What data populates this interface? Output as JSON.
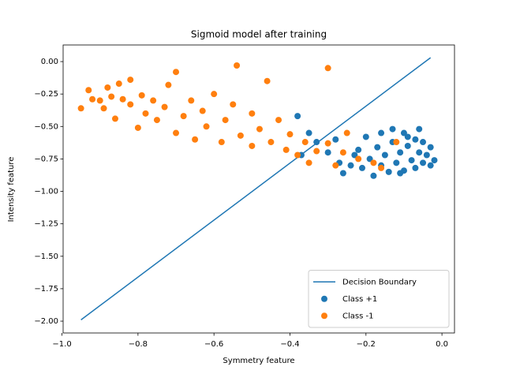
{
  "chart_data": {
    "type": "scatter",
    "title": "Sigmoid model after training",
    "xlabel": "Symmetry feature",
    "ylabel": "Intensity feature",
    "xlim": [
      -0.997,
      0.033
    ],
    "ylim": [
      -2.091,
      0.128
    ],
    "xticks": [
      {
        "value": -1.0,
        "label": "−1.0"
      },
      {
        "value": -0.8,
        "label": "−0.8"
      },
      {
        "value": -0.6,
        "label": "−0.6"
      },
      {
        "value": -0.4,
        "label": "−0.4"
      },
      {
        "value": -0.2,
        "label": "−0.2"
      },
      {
        "value": 0.0,
        "label": "0.0"
      }
    ],
    "yticks": [
      {
        "value": 0.0,
        "label": "0.00"
      },
      {
        "value": -0.25,
        "label": "−0.25"
      },
      {
        "value": -0.5,
        "label": "−0.50"
      },
      {
        "value": -0.75,
        "label": "−0.75"
      },
      {
        "value": -1.0,
        "label": "−1.00"
      },
      {
        "value": -1.25,
        "label": "−1.25"
      },
      {
        "value": -1.5,
        "label": "−1.50"
      },
      {
        "value": -1.75,
        "label": "−1.75"
      },
      {
        "value": -2.0,
        "label": "−2.00"
      }
    ],
    "legend": "lower right",
    "series": [
      {
        "name": "Decision Boundary",
        "type": "line",
        "color": "#1f77b4",
        "x": [
          -0.95,
          -0.03
        ],
        "values": [
          -1.99,
          0.03
        ]
      },
      {
        "name": "Class +1",
        "type": "scatter",
        "color": "#1f77b4",
        "x": [
          -0.38,
          -0.37,
          -0.35,
          -0.33,
          -0.3,
          -0.28,
          -0.26,
          -0.24,
          -0.22,
          -0.21,
          -0.2,
          -0.19,
          -0.18,
          -0.17,
          -0.16,
          -0.15,
          -0.14,
          -0.13,
          -0.12,
          -0.11,
          -0.1,
          -0.1,
          -0.09,
          -0.08,
          -0.07,
          -0.07,
          -0.06,
          -0.05,
          -0.05,
          -0.04,
          -0.03,
          -0.03,
          -0.02,
          -0.13,
          -0.23,
          -0.27,
          -0.09,
          -0.16,
          -0.11,
          -0.06
        ],
        "values": [
          -0.42,
          -0.72,
          -0.55,
          -0.62,
          -0.7,
          -0.6,
          -0.86,
          -0.8,
          -0.68,
          -0.82,
          -0.58,
          -0.75,
          -0.88,
          -0.66,
          -0.55,
          -0.72,
          -0.85,
          -0.62,
          -0.78,
          -0.7,
          -0.55,
          -0.84,
          -0.65,
          -0.76,
          -0.6,
          -0.82,
          -0.7,
          -0.78,
          -0.62,
          -0.72,
          -0.8,
          -0.66,
          -0.76,
          -0.52,
          -0.72,
          -0.78,
          -0.58,
          -0.8,
          -0.86,
          -0.52
        ]
      },
      {
        "name": "Class -1",
        "type": "scatter",
        "color": "#ff7f0e",
        "x": [
          -0.95,
          -0.93,
          -0.92,
          -0.9,
          -0.89,
          -0.88,
          -0.87,
          -0.86,
          -0.85,
          -0.84,
          -0.82,
          -0.82,
          -0.8,
          -0.79,
          -0.78,
          -0.76,
          -0.75,
          -0.73,
          -0.72,
          -0.7,
          -0.7,
          -0.68,
          -0.66,
          -0.65,
          -0.63,
          -0.62,
          -0.6,
          -0.58,
          -0.57,
          -0.55,
          -0.54,
          -0.53,
          -0.5,
          -0.5,
          -0.48,
          -0.46,
          -0.45,
          -0.43,
          -0.41,
          -0.4,
          -0.38,
          -0.36,
          -0.35,
          -0.33,
          -0.3,
          -0.3,
          -0.28,
          -0.26,
          -0.25,
          -0.22,
          -0.18,
          -0.16,
          -0.12
        ],
        "values": [
          -0.36,
          -0.22,
          -0.29,
          -0.3,
          -0.36,
          -0.2,
          -0.27,
          -0.44,
          -0.17,
          -0.29,
          -0.14,
          -0.33,
          -0.51,
          -0.26,
          -0.4,
          -0.3,
          -0.45,
          -0.35,
          -0.18,
          -0.08,
          -0.55,
          -0.42,
          -0.3,
          -0.6,
          -0.38,
          -0.5,
          -0.25,
          -0.62,
          -0.45,
          -0.33,
          -0.03,
          -0.57,
          -0.65,
          -0.4,
          -0.52,
          -0.15,
          -0.62,
          -0.45,
          -0.68,
          -0.56,
          -0.72,
          -0.62,
          -0.78,
          -0.69,
          -0.63,
          -0.05,
          -0.8,
          -0.7,
          -0.55,
          -0.75,
          -0.78,
          -0.82,
          -0.62
        ]
      }
    ]
  }
}
